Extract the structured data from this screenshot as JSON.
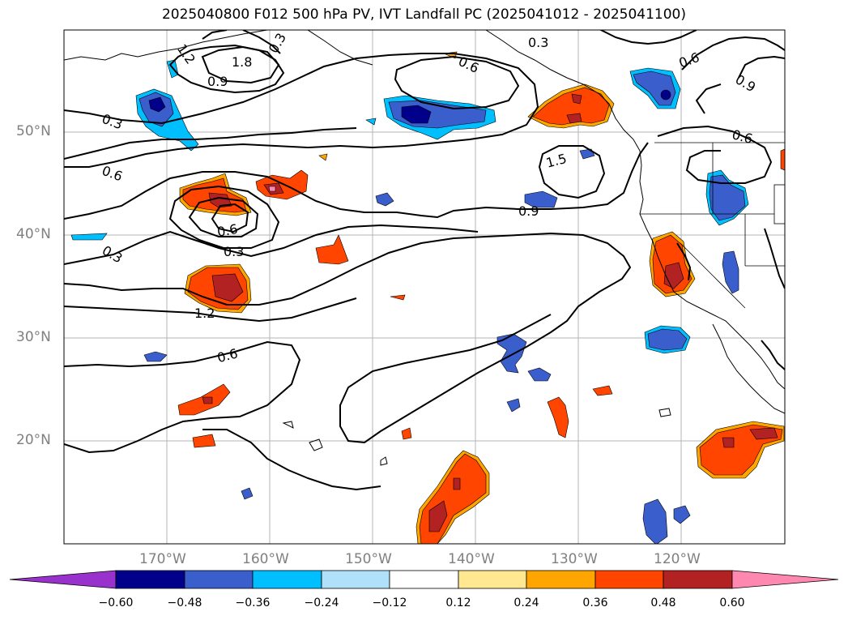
{
  "title": "2025040800 F012 500 hPa PV, IVT Landfall PC (2025041012 - 2025041100)",
  "latitude_labels": [
    "50°N",
    "40°N",
    "30°N",
    "20°N"
  ],
  "longitude_labels": [
    "170°W",
    "160°W",
    "150°W",
    "140°W",
    "130°W",
    "120°W"
  ],
  "contour_labels": [
    "1.2",
    "1.8",
    "0.3",
    "0.9",
    "0.3",
    "0.6",
    "0.3",
    "0.6",
    "0.6",
    "0.9",
    "0.6",
    "1.5",
    "0.9",
    "0.6",
    "0.3",
    "0.3",
    "1.2",
    "0.6"
  ],
  "colorbar": {
    "tick_labels": [
      "−0.60",
      "−0.48",
      "−0.36",
      "−0.24",
      "−0.12",
      "0.12",
      "0.24",
      "0.36",
      "0.48",
      "0.60"
    ],
    "colors": [
      "#9932cc",
      "#00008b",
      "#3a5fcd",
      "#00bfff",
      "#b0e0fa",
      "#ffffff",
      "#ffe88f",
      "#ffa500",
      "#ff4500",
      "#b22222",
      "#ff88b0"
    ]
  }
}
